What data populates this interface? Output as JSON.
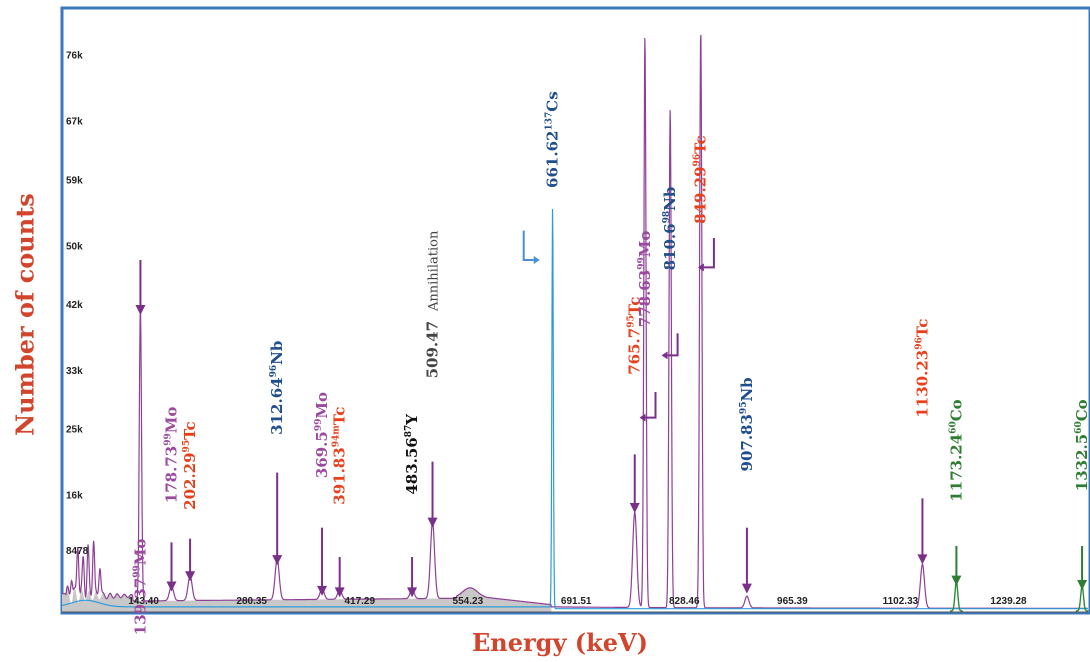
{
  "chart_data": {
    "type": "line",
    "xlabel": "Energy (keV)",
    "ylabel": "Number of counts",
    "x_ticks": [
      "143.40",
      "280.35",
      "417.29",
      "554.23",
      "691.51",
      "828.46",
      "965.39",
      "1102.33",
      "1239.28"
    ],
    "y_ticks": [
      "8478",
      "16k",
      "25k",
      "33k",
      "42k",
      "50k",
      "59k",
      "67k",
      "76k"
    ],
    "y_tick_values": [
      8478,
      16000,
      25000,
      33000,
      42000,
      50000,
      59000,
      67000,
      76000
    ],
    "xlim": [
      40,
      1340
    ],
    "ylim": [
      0,
      81000
    ],
    "grid": false,
    "series": [
      {
        "color": "#8e3f96",
        "fill": "#c8c8c8",
        "peaks": [
          {
            "energy": 139.37,
            "counts": 40000
          },
          {
            "energy": 178.73,
            "counts": 2000
          },
          {
            "energy": 202.29,
            "counts": 3400
          },
          {
            "energy": 312.64,
            "counts": 5600
          },
          {
            "energy": 369.5,
            "counts": 1500
          },
          {
            "energy": 391.83,
            "counts": 1300
          },
          {
            "energy": 483.56,
            "counts": 1300
          },
          {
            "energy": 509.47,
            "counts": 10500
          },
          {
            "energy": 765.7,
            "counts": 13000
          },
          {
            "energy": 778.63,
            "counts": 78000
          },
          {
            "energy": 810.6,
            "counts": 68000
          },
          {
            "energy": 849.29,
            "counts": 79000
          },
          {
            "energy": 907.83,
            "counts": 1600
          },
          {
            "energy": 1130.23,
            "counts": 6000
          }
        ]
      },
      {
        "color": "#2e9bd8",
        "peaks": [
          {
            "energy": 661.62,
            "counts": 55000
          }
        ]
      },
      {
        "color": "#2e8b3c",
        "peaks": [
          {
            "energy": 1173.24,
            "counts": 4000
          },
          {
            "energy": 1332.5,
            "counts": 3400
          }
        ]
      }
    ],
    "annotations": [
      {
        "energy": "139.37",
        "nuclide_mass": "99",
        "nuclide": "Mo",
        "color": "#9b4aa0",
        "arrow": "down",
        "x": 139.37,
        "label_top": 10,
        "arrow_from": 48,
        "arrow_to": 40.5
      },
      {
        "energy": "178.73",
        "nuclide_mass": "99",
        "nuclide": "Mo",
        "color": "#9b4aa0",
        "arrow": "down",
        "x": 178.73,
        "label_top": 28,
        "arrow_from": 9.5,
        "arrow_to": 2.8
      },
      {
        "energy": "202.29",
        "nuclide_mass": "95",
        "nuclide": "Tc",
        "color": "#e8401c",
        "arrow": "down",
        "x": 202.29,
        "label_top": 26,
        "arrow_from": 10,
        "arrow_to": 4.2
      },
      {
        "energy": "312.64",
        "nuclide_mass": "96",
        "nuclide": "Nb",
        "color": "#1f4e8c",
        "arrow": "down",
        "x": 312.64,
        "label_top": 37,
        "arrow_from": 19,
        "arrow_to": 6.4
      },
      {
        "energy": "369.5",
        "nuclide_mass": "99",
        "nuclide": "Mo",
        "color": "#9b4aa0",
        "arrow": "down",
        "x": 369.5,
        "label_top": 30,
        "arrow_from": 11.5,
        "arrow_to": 2.2
      },
      {
        "energy": "391.83",
        "nuclide_mass": "94m",
        "nuclide": "Tc",
        "color": "#e8401c",
        "arrow": "down",
        "x": 391.83,
        "label_top": 28,
        "arrow_from": 7.5,
        "arrow_to": 2
      },
      {
        "energy": "483.56",
        "nuclide_mass": "87",
        "nuclide": "Y",
        "color": "#111111",
        "arrow": "down",
        "x": 483.56,
        "label_top": 27,
        "arrow_from": 7.5,
        "arrow_to": 2
      },
      {
        "energy": "509.47",
        "nuclide_mass": "",
        "nuclide": "Annihilation",
        "color": "#444444",
        "arrow": "down",
        "x": 509.47,
        "label_top": 52,
        "arrow_from": 20.5,
        "arrow_to": 11.5
      },
      {
        "energy": "661.62",
        "nuclide_mass": "137",
        "nuclide": "Cs",
        "color": "#1f4e8c",
        "arrow": "elbow-right",
        "x": 661.62,
        "label_top": 71,
        "elbow_x": 625,
        "elbow_from": 52,
        "elbow_to": 48
      },
      {
        "energy": "765.7",
        "nuclide_mass": "95",
        "nuclide": "Tc",
        "color": "#e8401c",
        "arrow": "down",
        "x": 765.7,
        "label_top": 43,
        "arrow_from": 21.5,
        "arrow_to": 13.5
      },
      {
        "energy": "778.63",
        "nuclide_mass": "99",
        "nuclide": "Mo",
        "color": "#9b4aa0",
        "arrow": "elbow-left",
        "x": 778.63,
        "label_top": 52,
        "elbow_x": 792,
        "elbow_from": 30,
        "elbow_to": 26.5
      },
      {
        "energy": "810.6",
        "nuclide_mass": "98",
        "nuclide": "Nb",
        "color": "#1f4e8c",
        "arrow": "elbow-left",
        "x": 810.6,
        "label_top": 58,
        "elbow_x": 820,
        "elbow_from": 38,
        "elbow_to": 35
      },
      {
        "energy": "849.29",
        "nuclide_mass": "96",
        "nuclide": "Tc",
        "color": "#e8401c",
        "arrow": "elbow-left",
        "x": 849.29,
        "label_top": 65,
        "elbow_x": 866,
        "elbow_from": 51,
        "elbow_to": 47
      },
      {
        "energy": "907.83",
        "nuclide_mass": "95",
        "nuclide": "Nb",
        "color": "#1f4e8c",
        "arrow": "down",
        "x": 907.83,
        "label_top": 32,
        "arrow_from": 11.5,
        "arrow_to": 2.5
      },
      {
        "energy": "1130.23",
        "nuclide_mass": "96",
        "nuclide": "Tc",
        "color": "#e8401c",
        "arrow": "down",
        "x": 1130.23,
        "label_top": 40,
        "arrow_from": 15.5,
        "arrow_to": 6.5
      },
      {
        "energy": "1173.24",
        "nuclide_mass": "60",
        "nuclide": "Co",
        "color": "#2e7d32",
        "arrow": "down",
        "x": 1173.24,
        "label_top": 29,
        "arrow_from": 9,
        "arrow_to": 3.6
      },
      {
        "energy": "1332.5",
        "nuclide_mass": "60",
        "nuclide": "Co",
        "color": "#2e7d32",
        "arrow": "down",
        "x": 1332.5,
        "label_top": 29,
        "arrow_from": 9,
        "arrow_to": 3
      }
    ]
  }
}
